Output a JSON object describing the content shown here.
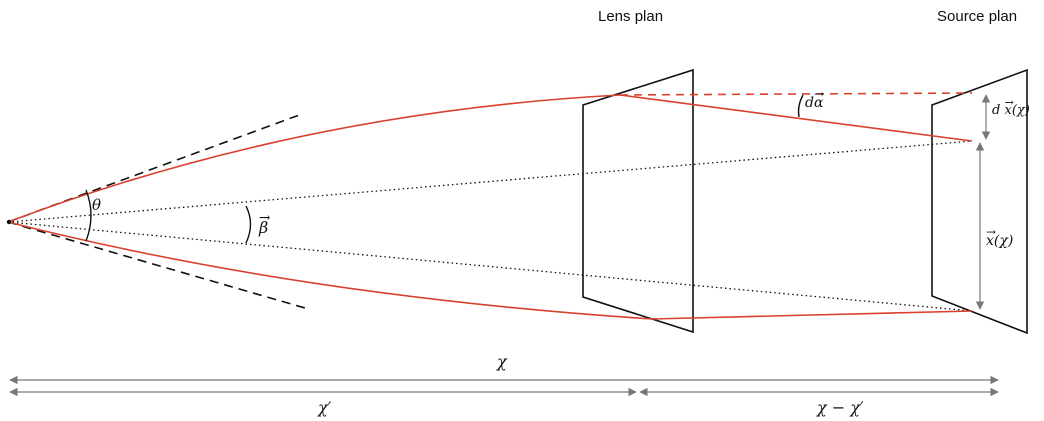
{
  "lens_plane": {
    "label": "Lens plan"
  },
  "source_plane": {
    "label": "Source plan"
  },
  "symbols": {
    "theta": "θ",
    "beta": "β",
    "d": "d",
    "alpha": "α",
    "x": "x",
    "chi_arg": "(χ)",
    "chi_total": "χ",
    "chi_prime": "χ′",
    "chi_diff": "χ − χ′"
  },
  "colors": {
    "ray": "#d9412e",
    "line": "#111111",
    "arrow": "#777777"
  }
}
